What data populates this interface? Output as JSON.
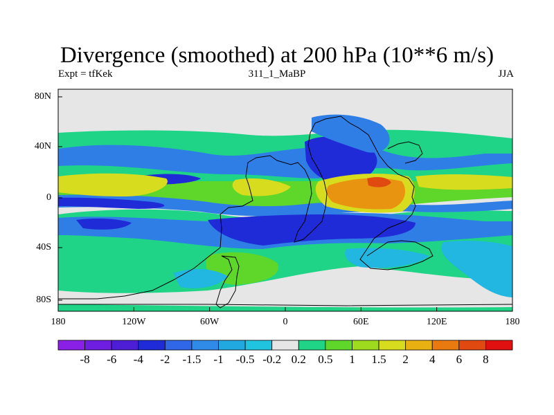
{
  "title": "Divergence (smoothed) at 200 hPa (10**6 m/s)",
  "subtitle_left": "Expt = tfKek",
  "subtitle_center": "311_1_MaBP",
  "subtitle_right": "JJA",
  "map": {
    "lat_labels": [
      "80N",
      "40N",
      "0",
      "40S",
      "80S"
    ],
    "lon_labels": [
      "180",
      "120W",
      "60W",
      "0",
      "60E",
      "120E",
      "180"
    ],
    "lat_range": [
      -90,
      90
    ],
    "lon_range": [
      -180,
      180
    ],
    "colors": {
      "n_strong": "#1f2bd6",
      "n_mid": "#2f7ee6",
      "n_weak": "#21b7e0",
      "neutral": "#e6e6e6",
      "p_weak": "#1fd487",
      "p_mid": "#5fd62a",
      "p_yel": "#d8dc1e",
      "p_org": "#e89410",
      "p_red": "#e04a10",
      "coast": "#000000"
    }
  },
  "colorbar": {
    "colors": [
      "#8a20e6",
      "#6d1ee0",
      "#4d1ed6",
      "#1f2bd6",
      "#2f67e6",
      "#2f8ae8",
      "#21a8e0",
      "#21c4de",
      "#e6e6e6",
      "#1fd487",
      "#5fd62a",
      "#9edb1e",
      "#d8dc1e",
      "#e8b010",
      "#e87a10",
      "#e04a10",
      "#e01010"
    ],
    "labels": [
      "-8",
      "-6",
      "-4",
      "-2",
      "-1.5",
      "-1",
      "-0.5",
      "-0.2",
      "0.2",
      "0.5",
      "1",
      "1.5",
      "2",
      "4",
      "6",
      "8"
    ]
  }
}
